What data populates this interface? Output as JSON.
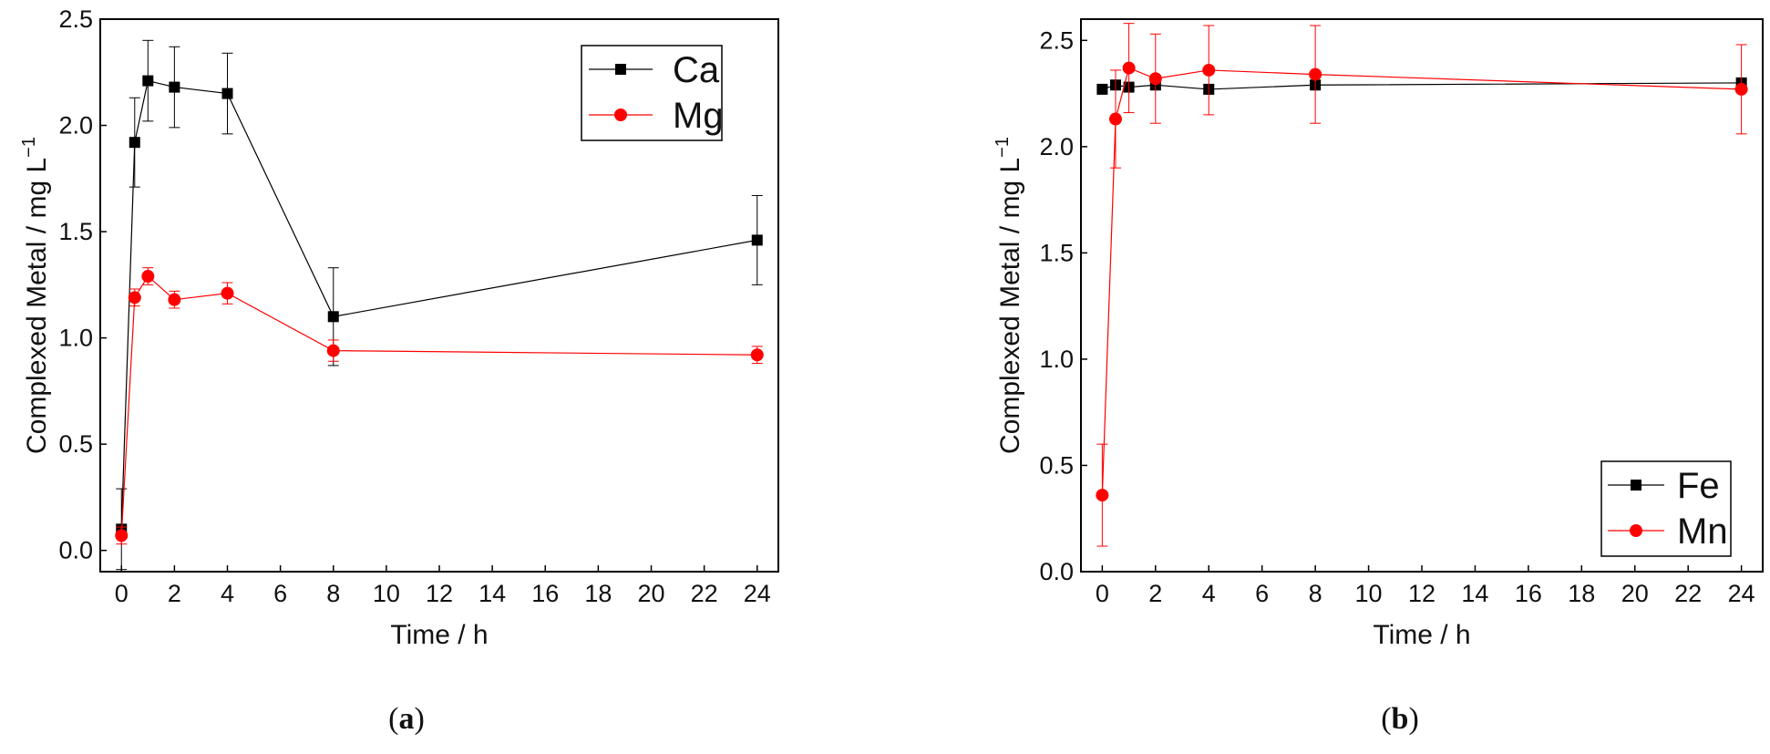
{
  "chart_data": [
    {
      "type": "line",
      "panel_label": "a",
      "xlabel": "Time / h",
      "ylabel": "Complexed Metal / mg L",
      "ylabel_superscript": "−1",
      "xlim": [
        -0.8,
        24.8
      ],
      "ylim": [
        -0.1,
        2.5
      ],
      "xticks": [
        0,
        2,
        4,
        6,
        8,
        10,
        12,
        14,
        16,
        18,
        20,
        22,
        24
      ],
      "xtick_labels": [
        "0",
        "2",
        "4",
        "6",
        "8",
        "10",
        "12",
        "14",
        "16",
        "18",
        "20",
        "22",
        "24"
      ],
      "yticks": [
        0.0,
        0.5,
        1.0,
        1.5,
        2.0,
        2.5
      ],
      "ytick_labels": [
        "0.0",
        "0.5",
        "1.0",
        "1.5",
        "2.0",
        "2.5"
      ],
      "legend_position": "top-right",
      "series": [
        {
          "name": "Ca",
          "color": "#000000",
          "marker": "square",
          "x": [
            0,
            0.5,
            1,
            2,
            4,
            8,
            24
          ],
          "y": [
            0.1,
            1.92,
            2.21,
            2.18,
            2.15,
            1.1,
            1.46
          ],
          "err": [
            0.19,
            0.21,
            0.19,
            0.19,
            0.19,
            0.23,
            0.21
          ]
        },
        {
          "name": "Mg",
          "color": "#ff0000",
          "marker": "circle",
          "x": [
            0,
            0.5,
            1,
            2,
            4,
            8,
            24
          ],
          "y": [
            0.07,
            1.19,
            1.29,
            1.18,
            1.21,
            0.94,
            0.92
          ],
          "err": [
            0.04,
            0.04,
            0.04,
            0.04,
            0.05,
            0.05,
            0.04
          ]
        }
      ]
    },
    {
      "type": "line",
      "panel_label": "b",
      "xlabel": "Time / h",
      "ylabel": "Complexed Metal / mg L",
      "ylabel_superscript": "−1",
      "xlim": [
        -0.8,
        24.8
      ],
      "ylim": [
        0.0,
        2.6
      ],
      "xticks": [
        0,
        2,
        4,
        6,
        8,
        10,
        12,
        14,
        16,
        18,
        20,
        22,
        24
      ],
      "xtick_labels": [
        "0",
        "2",
        "4",
        "6",
        "8",
        "10",
        "12",
        "14",
        "16",
        "18",
        "20",
        "22",
        "24"
      ],
      "yticks": [
        0.0,
        0.5,
        1.0,
        1.5,
        2.0,
        2.5
      ],
      "ytick_labels": [
        "0.0",
        "0.5",
        "1.0",
        "1.5",
        "2.0",
        "2.5"
      ],
      "legend_position": "bottom-right",
      "series": [
        {
          "name": "Fe",
          "color": "#000000",
          "marker": "square",
          "x": [
            0,
            0.5,
            1,
            2,
            4,
            8,
            24
          ],
          "y": [
            2.27,
            2.29,
            2.28,
            2.29,
            2.27,
            2.29,
            2.3
          ],
          "err": [
            0.0,
            0.02,
            0.0,
            0.02,
            0.02,
            0.02,
            0.0
          ]
        },
        {
          "name": "Mn",
          "color": "#ff0000",
          "marker": "circle",
          "x": [
            0,
            0.5,
            1,
            2,
            4,
            8,
            24
          ],
          "y": [
            0.36,
            2.13,
            2.37,
            2.32,
            2.36,
            2.34,
            2.27
          ],
          "err": [
            0.24,
            0.23,
            0.21,
            0.21,
            0.21,
            0.23,
            0.21
          ]
        }
      ]
    }
  ]
}
